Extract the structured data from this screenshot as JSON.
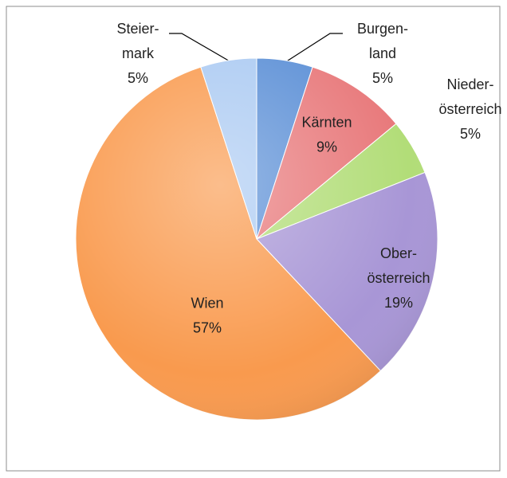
{
  "chart_data": {
    "type": "pie",
    "categories": [
      [
        "Burgen-",
        "land"
      ],
      [
        "Kärnten"
      ],
      [
        "Nieder-",
        "österreich"
      ],
      [
        "Ober-",
        "österreich"
      ],
      [
        "Wien"
      ],
      [
        "Steier-",
        "mark"
      ]
    ],
    "values": [
      5,
      9,
      5,
      19,
      57,
      5
    ],
    "value_labels": [
      "5%",
      "9%",
      "5%",
      "19%",
      "57%",
      "5%"
    ],
    "colors": [
      "#5b8fd6",
      "#e8787a",
      "#b2dd78",
      "#a896d6",
      "#f99a4e",
      "#abcaf2"
    ]
  }
}
